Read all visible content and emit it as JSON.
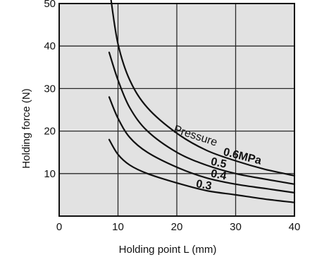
{
  "chart_data": {
    "type": "line",
    "xlabel": "Holding point L   (mm)",
    "ylabel": "Holding force (N)",
    "x_ticks": [
      "0",
      "10",
      "20",
      "30",
      "40"
    ],
    "y_ticks": [
      "10",
      "20",
      "30",
      "40",
      "50"
    ],
    "xlim": [
      0,
      40
    ],
    "ylim": [
      0,
      50
    ],
    "grid": true,
    "colors": {
      "plot_background": "#e2e2e2",
      "grid": "#2a2a2a",
      "line": "#111111"
    },
    "pressure_label": "Pressure",
    "series": [
      {
        "name": "0.6MPa",
        "x": [
          8.8,
          10,
          12,
          15,
          20,
          25,
          30,
          35,
          40
        ],
        "y": [
          51,
          40.5,
          32,
          25.5,
          19.5,
          15.5,
          13,
          11,
          9.5
        ]
      },
      {
        "name": "0.5",
        "x": [
          8.5,
          10,
          12,
          15,
          20,
          25,
          30,
          35,
          40
        ],
        "y": [
          38.5,
          32,
          25.5,
          20,
          15,
          12,
          10,
          8.7,
          7.5
        ]
      },
      {
        "name": "0.4",
        "x": [
          8.5,
          10,
          12,
          15,
          20,
          25,
          30,
          35,
          40
        ],
        "y": [
          28,
          23,
          18.5,
          15,
          11.5,
          9,
          7.5,
          6.5,
          5.5
        ]
      },
      {
        "name": "0.3",
        "x": [
          8.5,
          10,
          12,
          15,
          20,
          25,
          30,
          35,
          40
        ],
        "y": [
          18,
          14.5,
          12,
          10,
          7.8,
          6,
          5,
          4,
          3.2
        ]
      }
    ]
  }
}
